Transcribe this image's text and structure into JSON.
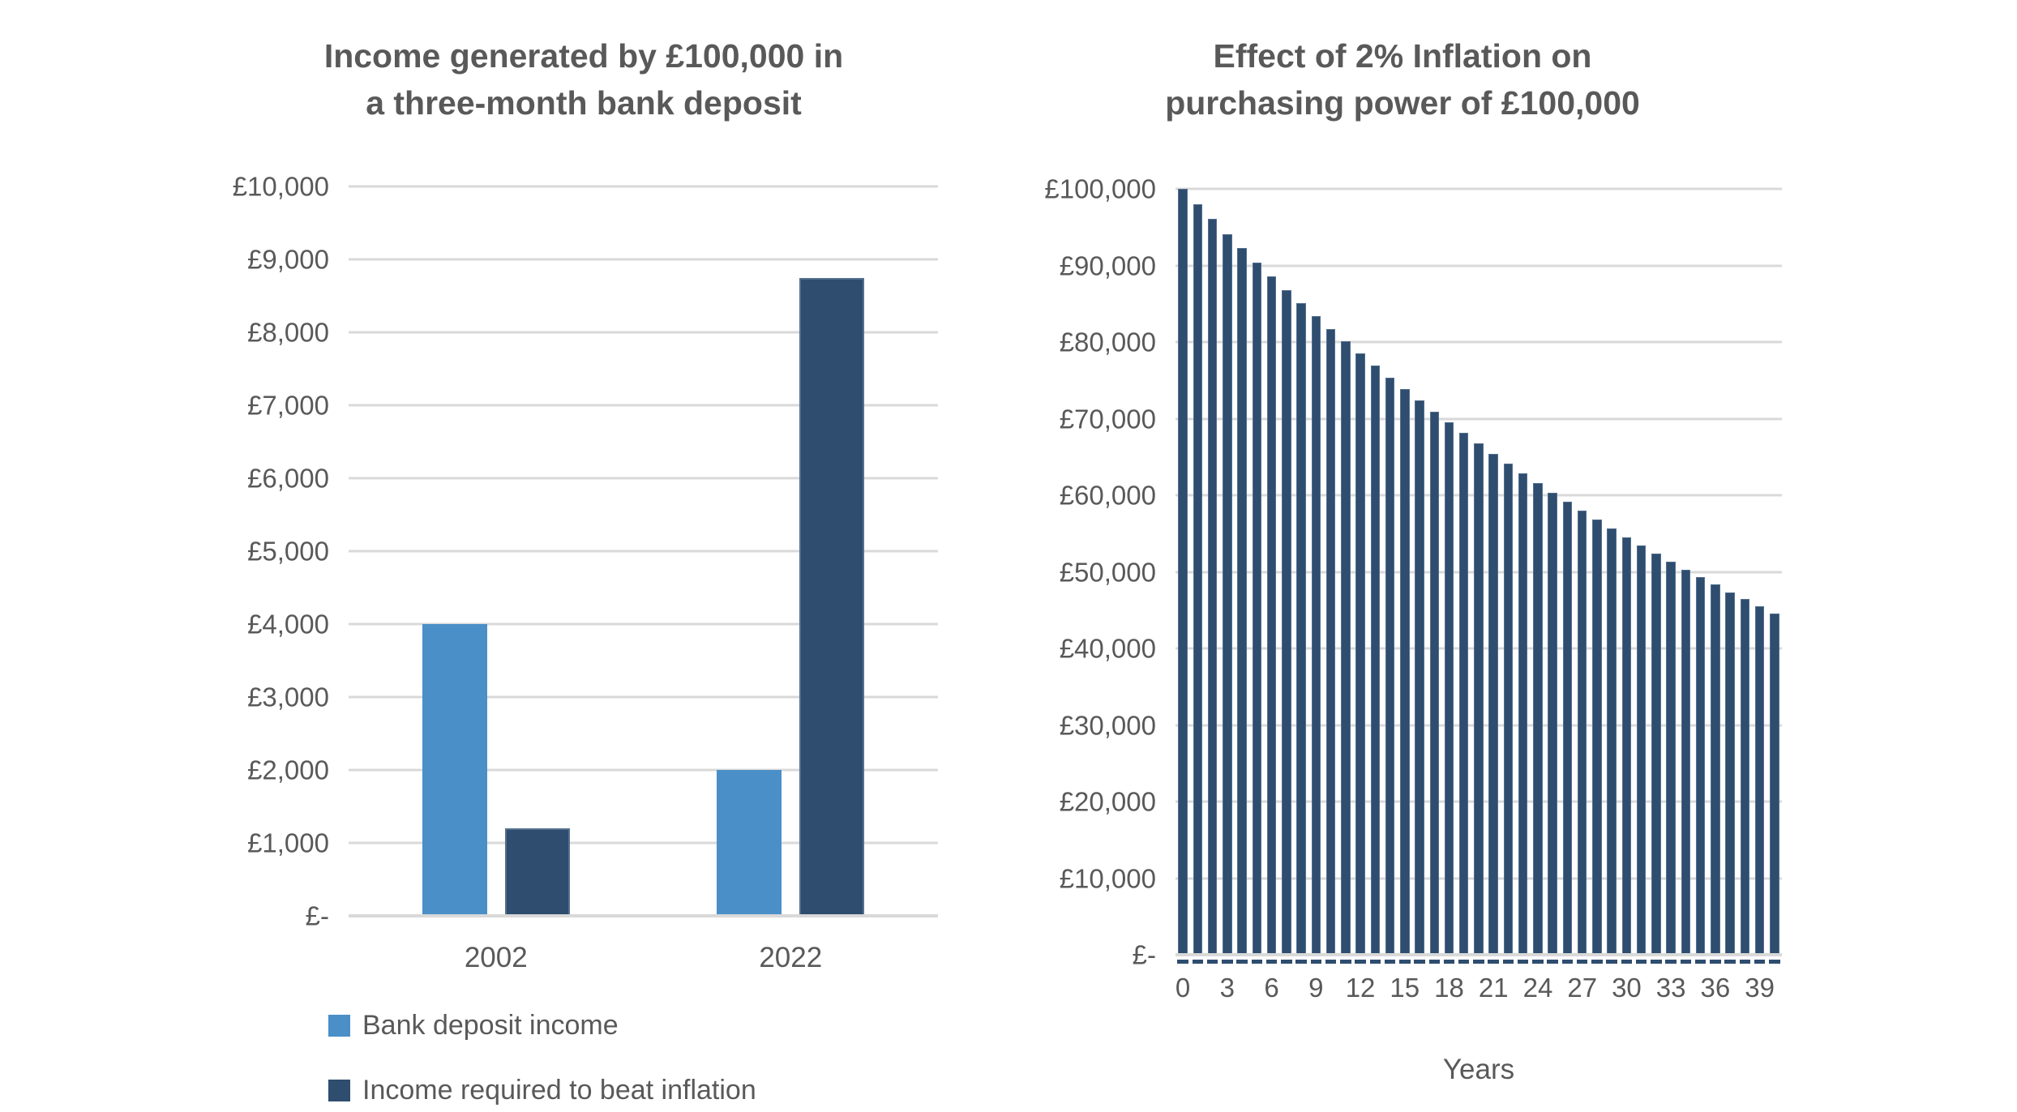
{
  "page": {
    "background": "#FFFFFF"
  },
  "colors": {
    "text": "#595959",
    "gridline": "#D9D9D9",
    "bank_deposit_blue": "#4A8FC7",
    "inflation_navy": "#2E4D6F",
    "navy_bar_border": "#54708E"
  },
  "chart_data": [
    {
      "type": "bar",
      "title": "Income generated by £100,000 in\na three-month bank deposit",
      "categories": [
        "2002",
        "2022"
      ],
      "series": [
        {
          "name": "Bank deposit income",
          "color": "#4A8FC7",
          "values": [
            4000,
            2000
          ]
        },
        {
          "name": "Income required to beat inflation",
          "color": "#2E4D6F",
          "border": "#54708E",
          "values": [
            1200,
            8750
          ]
        }
      ],
      "ylim": [
        0,
        10000
      ],
      "ytick_labels": [
        "£-",
        "£1,000",
        "£2,000",
        "£3,000",
        "£4,000",
        "£5,000",
        "£6,000",
        "£7,000",
        "£8,000",
        "£9,000",
        "£10,000"
      ],
      "xlabel": "",
      "ylabel": "",
      "grid": true,
      "legend_position": "bottom-left"
    },
    {
      "type": "bar",
      "title": "Effect of 2% Inflation on\npurchasing power of £100,000",
      "x": [
        0,
        1,
        2,
        3,
        4,
        5,
        6,
        7,
        8,
        9,
        10,
        11,
        12,
        13,
        14,
        15,
        16,
        17,
        18,
        19,
        20,
        21,
        22,
        23,
        24,
        25,
        26,
        27,
        28,
        29,
        30,
        31,
        32,
        33,
        34,
        35,
        36,
        37,
        38,
        39,
        40
      ],
      "values": [
        100000,
        98000,
        96040,
        94119,
        92237,
        90392,
        88584,
        86813,
        85076,
        83375,
        81707,
        80073,
        78472,
        76902,
        75364,
        73857,
        72380,
        70932,
        69514,
        68123,
        66761,
        65426,
        64117,
        62835,
        61578,
        60346,
        59140,
        57957,
        56798,
        55662,
        54548,
        53457,
        52388,
        51341,
        50314,
        49307,
        48321,
        47355,
        46408,
        45480,
        44570
      ],
      "ylim": [
        0,
        100000
      ],
      "ytick_labels": [
        "£-",
        "£10,000",
        "£20,000",
        "£30,000",
        "£40,000",
        "£50,000",
        "£60,000",
        "£70,000",
        "£80,000",
        "£90,000",
        "£100,000"
      ],
      "xtick_labels": [
        "0",
        "3",
        "6",
        "9",
        "12",
        "15",
        "18",
        "21",
        "24",
        "27",
        "30",
        "33",
        "36",
        "39"
      ],
      "xtick_step": 3,
      "xlabel": "Years",
      "ylabel": "",
      "bar_color": "#2E4D6F",
      "bar_border": "#54708E",
      "axis_dash_color": "#2E4D6F",
      "grid": true,
      "legend_position": "none"
    }
  ]
}
